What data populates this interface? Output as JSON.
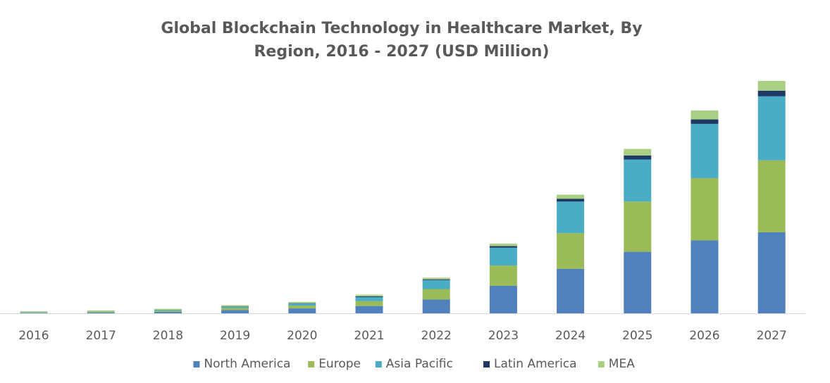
{
  "chart_data": {
    "type": "bar",
    "stacked": true,
    "title_lines": [
      "Global Blockchain Technology in Healthcare Market, By",
      "Region, 2016 - 2027 (USD Million)"
    ],
    "xlabel": "",
    "ylabel": "",
    "categories": [
      "2016",
      "2017",
      "2018",
      "2019",
      "2020",
      "2021",
      "2022",
      "2023",
      "2024",
      "2025",
      "2026",
      "2027"
    ],
    "series": [
      {
        "name": "North America",
        "color": "#4f81bd",
        "values": [
          0.5,
          1.0,
          2.0,
          4.0,
          6.0,
          9.0,
          17.0,
          34.0,
          55.0,
          76.0,
          90.0,
          100.0
        ]
      },
      {
        "name": "Europe",
        "color": "#9bbb59",
        "values": [
          0.5,
          1.0,
          1.5,
          2.5,
          3.5,
          6.0,
          13.0,
          25.0,
          44.0,
          62.0,
          77.0,
          89.0
        ]
      },
      {
        "name": "Asia Pacific",
        "color": "#4bacc6",
        "values": [
          0.5,
          0.5,
          1.0,
          1.5,
          2.5,
          5.0,
          11.0,
          22.0,
          39.0,
          52.0,
          67.0,
          79.0
        ]
      },
      {
        "name": "Latin America",
        "color": "#1f3864",
        "values": [
          0.0,
          0.0,
          0.0,
          0.5,
          0.5,
          1.0,
          1.0,
          2.0,
          3.5,
          5.0,
          5.5,
          7.0
        ]
      },
      {
        "name": "MEA",
        "color": "#a9cf82",
        "values": [
          1.0,
          1.0,
          1.0,
          1.5,
          1.5,
          2.0,
          2.0,
          3.0,
          5.0,
          8.0,
          11.0,
          12.0
        ]
      }
    ],
    "ylim": [
      0,
      300
    ],
    "grid": false,
    "legend_position": "bottom"
  }
}
